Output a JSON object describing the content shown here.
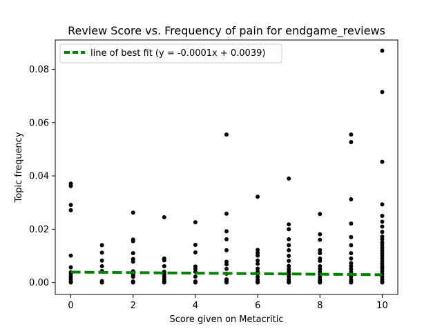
{
  "chart_data": {
    "type": "scatter",
    "title": "Review Score vs. Frequency of pain for endgame_reviews",
    "xlabel": "Score given on Metacritic",
    "ylabel": "Topic frequency",
    "xlim": [
      -0.5,
      10.5
    ],
    "ylim": [
      -0.0045,
      0.091
    ],
    "xticks": [
      0,
      2,
      4,
      6,
      8,
      10
    ],
    "xtick_labels": [
      "0",
      "2",
      "4",
      "6",
      "8",
      "10"
    ],
    "yticks": [
      0.0,
      0.02,
      0.04,
      0.06,
      0.08
    ],
    "ytick_labels": [
      "0.00",
      "0.02",
      "0.04",
      "0.06",
      "0.08"
    ],
    "grid": false,
    "legend_position": "top-left",
    "point_color": "#000000",
    "fit_line": {
      "label": "line of best fit (y = -0.0001x + 0.0039)",
      "slope": -0.0001,
      "intercept": 0.0039,
      "color": "#008000",
      "style": "dashed",
      "x_range": [
        0,
        10
      ]
    },
    "points": [
      {
        "x": 0,
        "y": 0.0371
      },
      {
        "x": 0,
        "y": 0.0362
      },
      {
        "x": 0,
        "y": 0.0291
      },
      {
        "x": 0,
        "y": 0.0271
      },
      {
        "x": 0,
        "y": 0.0101
      },
      {
        "x": 0,
        "y": 0.0057
      },
      {
        "x": 0,
        "y": 0.0038
      },
      {
        "x": 0,
        "y": 0.003
      },
      {
        "x": 0,
        "y": 0.0021
      },
      {
        "x": 0,
        "y": 0.0012
      },
      {
        "x": 0,
        "y": 0.0004
      },
      {
        "x": 0,
        "y": 0.0
      },
      {
        "x": 1,
        "y": 0.014
      },
      {
        "x": 1,
        "y": 0.0112
      },
      {
        "x": 1,
        "y": 0.0082
      },
      {
        "x": 1,
        "y": 0.0061
      },
      {
        "x": 1,
        "y": 0.0043
      },
      {
        "x": 1,
        "y": 0.0005
      },
      {
        "x": 1,
        "y": 0.0
      },
      {
        "x": 2,
        "y": 0.0262
      },
      {
        "x": 2,
        "y": 0.0161
      },
      {
        "x": 2,
        "y": 0.0155
      },
      {
        "x": 2,
        "y": 0.011
      },
      {
        "x": 2,
        "y": 0.0088
      },
      {
        "x": 2,
        "y": 0.0078
      },
      {
        "x": 2,
        "y": 0.0042
      },
      {
        "x": 2,
        "y": 0.0028
      },
      {
        "x": 2,
        "y": 0.0021
      },
      {
        "x": 2,
        "y": 0.0004
      },
      {
        "x": 2,
        "y": 0.0
      },
      {
        "x": 3,
        "y": 0.0245
      },
      {
        "x": 3,
        "y": 0.009
      },
      {
        "x": 3,
        "y": 0.0083
      },
      {
        "x": 3,
        "y": 0.0061
      },
      {
        "x": 3,
        "y": 0.004
      },
      {
        "x": 3,
        "y": 0.0031
      },
      {
        "x": 3,
        "y": 0.0022
      },
      {
        "x": 3,
        "y": 0.0012
      },
      {
        "x": 3,
        "y": 0.0004
      },
      {
        "x": 3,
        "y": 0.0
      },
      {
        "x": 4,
        "y": 0.0226
      },
      {
        "x": 4,
        "y": 0.0141
      },
      {
        "x": 4,
        "y": 0.0113
      },
      {
        "x": 4,
        "y": 0.006
      },
      {
        "x": 4,
        "y": 0.0051
      },
      {
        "x": 4,
        "y": 0.004
      },
      {
        "x": 4,
        "y": 0.0022
      },
      {
        "x": 4,
        "y": 0.0004
      },
      {
        "x": 4,
        "y": 0.0
      },
      {
        "x": 5,
        "y": 0.0555
      },
      {
        "x": 5,
        "y": 0.0258
      },
      {
        "x": 5,
        "y": 0.0192
      },
      {
        "x": 5,
        "y": 0.0162
      },
      {
        "x": 5,
        "y": 0.0121
      },
      {
        "x": 5,
        "y": 0.0078
      },
      {
        "x": 5,
        "y": 0.0068
      },
      {
        "x": 5,
        "y": 0.0051
      },
      {
        "x": 5,
        "y": 0.0033
      },
      {
        "x": 5,
        "y": 0.0012
      },
      {
        "x": 5,
        "y": 0.0005
      },
      {
        "x": 5,
        "y": 0.0
      },
      {
        "x": 6,
        "y": 0.0322
      },
      {
        "x": 6,
        "y": 0.0122
      },
      {
        "x": 6,
        "y": 0.0111
      },
      {
        "x": 6,
        "y": 0.0101
      },
      {
        "x": 6,
        "y": 0.0082
      },
      {
        "x": 6,
        "y": 0.007
      },
      {
        "x": 6,
        "y": 0.0052
      },
      {
        "x": 6,
        "y": 0.004
      },
      {
        "x": 6,
        "y": 0.0032
      },
      {
        "x": 6,
        "y": 0.0021
      },
      {
        "x": 6,
        "y": 0.0011
      },
      {
        "x": 6,
        "y": 0.0004
      },
      {
        "x": 6,
        "y": 0.0
      },
      {
        "x": 7,
        "y": 0.039
      },
      {
        "x": 7,
        "y": 0.0218
      },
      {
        "x": 7,
        "y": 0.02
      },
      {
        "x": 7,
        "y": 0.0162
      },
      {
        "x": 7,
        "y": 0.014
      },
      {
        "x": 7,
        "y": 0.0121
      },
      {
        "x": 7,
        "y": 0.01
      },
      {
        "x": 7,
        "y": 0.0081
      },
      {
        "x": 7,
        "y": 0.0062
      },
      {
        "x": 7,
        "y": 0.005
      },
      {
        "x": 7,
        "y": 0.004
      },
      {
        "x": 7,
        "y": 0.003
      },
      {
        "x": 7,
        "y": 0.0021
      },
      {
        "x": 7,
        "y": 0.001
      },
      {
        "x": 7,
        "y": 0.0004
      },
      {
        "x": 7,
        "y": 0.0
      },
      {
        "x": 8,
        "y": 0.0257
      },
      {
        "x": 8,
        "y": 0.0181
      },
      {
        "x": 8,
        "y": 0.016
      },
      {
        "x": 8,
        "y": 0.0121
      },
      {
        "x": 8,
        "y": 0.011
      },
      {
        "x": 8,
        "y": 0.009
      },
      {
        "x": 8,
        "y": 0.0081
      },
      {
        "x": 8,
        "y": 0.0061
      },
      {
        "x": 8,
        "y": 0.005
      },
      {
        "x": 8,
        "y": 0.004
      },
      {
        "x": 8,
        "y": 0.003
      },
      {
        "x": 8,
        "y": 0.002
      },
      {
        "x": 8,
        "y": 0.001
      },
      {
        "x": 8,
        "y": 0.0004
      },
      {
        "x": 8,
        "y": 0.0
      },
      {
        "x": 9,
        "y": 0.0555
      },
      {
        "x": 9,
        "y": 0.0527
      },
      {
        "x": 9,
        "y": 0.0312
      },
      {
        "x": 9,
        "y": 0.0221
      },
      {
        "x": 9,
        "y": 0.017
      },
      {
        "x": 9,
        "y": 0.014
      },
      {
        "x": 9,
        "y": 0.011
      },
      {
        "x": 9,
        "y": 0.009
      },
      {
        "x": 9,
        "y": 0.0072
      },
      {
        "x": 9,
        "y": 0.0061
      },
      {
        "x": 9,
        "y": 0.005
      },
      {
        "x": 9,
        "y": 0.004
      },
      {
        "x": 9,
        "y": 0.003
      },
      {
        "x": 9,
        "y": 0.0021
      },
      {
        "x": 9,
        "y": 0.001
      },
      {
        "x": 9,
        "y": 0.0004
      },
      {
        "x": 9,
        "y": 0.0
      },
      {
        "x": 10,
        "y": 0.087
      },
      {
        "x": 10,
        "y": 0.0715
      },
      {
        "x": 10,
        "y": 0.0453
      },
      {
        "x": 10,
        "y": 0.0293
      },
      {
        "x": 10,
        "y": 0.025
      },
      {
        "x": 10,
        "y": 0.0228
      },
      {
        "x": 10,
        "y": 0.021
      },
      {
        "x": 10,
        "y": 0.019
      },
      {
        "x": 10,
        "y": 0.0172
      },
      {
        "x": 10,
        "y": 0.0162
      },
      {
        "x": 10,
        "y": 0.015
      },
      {
        "x": 10,
        "y": 0.014
      },
      {
        "x": 10,
        "y": 0.013
      },
      {
        "x": 10,
        "y": 0.012
      },
      {
        "x": 10,
        "y": 0.011
      },
      {
        "x": 10,
        "y": 0.01
      },
      {
        "x": 10,
        "y": 0.009
      },
      {
        "x": 10,
        "y": 0.008
      },
      {
        "x": 10,
        "y": 0.007
      },
      {
        "x": 10,
        "y": 0.006
      },
      {
        "x": 10,
        "y": 0.0052
      },
      {
        "x": 10,
        "y": 0.0042
      },
      {
        "x": 10,
        "y": 0.0032
      },
      {
        "x": 10,
        "y": 0.0022
      },
      {
        "x": 10,
        "y": 0.0012
      },
      {
        "x": 10,
        "y": 0.0004
      },
      {
        "x": 10,
        "y": 0.0
      }
    ]
  }
}
